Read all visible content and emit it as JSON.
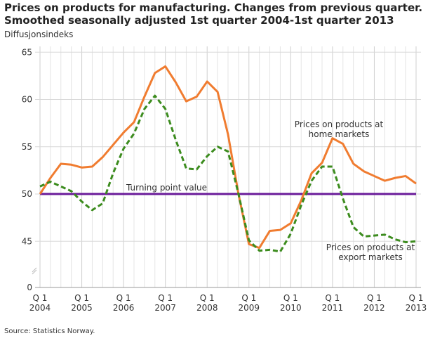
{
  "chart_data": {
    "type": "line",
    "title": "Prices on products for manufacturing. Changes from previous quarter. Smoothed seasonally adjusted 1st quarter 2004-1st quarter 2013",
    "title_lines": [
      "Prices on products for manufacturing. Changes from previous quarter.",
      "Smoothed seasonally adjusted 1st quarter 2004-1st quarter 2013"
    ],
    "ylabel": "Diffusjonsindeks",
    "source": "Source: Statistics Norway.",
    "x_tick_labels": [
      [
        "Q 1",
        "2004"
      ],
      [
        "Q 1",
        "2005"
      ],
      [
        "Q 1",
        "2006"
      ],
      [
        "Q 1",
        "2007"
      ],
      [
        "Q 1",
        "2008"
      ],
      [
        "Q 1",
        "2009"
      ],
      [
        "Q 1",
        "2010"
      ],
      [
        "Q 1",
        "2011"
      ],
      [
        "Q 1",
        "2012"
      ],
      [
        "Q 1",
        "2013"
      ]
    ],
    "x_start": "2004Q1",
    "x_end": "2013Q1",
    "y_ticks": [
      0,
      45,
      50,
      55,
      60,
      65
    ],
    "ylim": [
      0,
      65
    ],
    "y_axis_break": [
      0,
      45
    ],
    "grid": true,
    "reference_line": {
      "value": 50,
      "label": "Turning point value",
      "color": "#6a1b9a"
    },
    "series": [
      {
        "name": "Prices on products at home markets",
        "label_lines": [
          "Prices on products at",
          "home markets"
        ],
        "color": "#f07c30",
        "style": "solid",
        "values": [
          50.0,
          51.7,
          53.2,
          53.1,
          52.8,
          52.9,
          53.9,
          55.2,
          56.5,
          57.6,
          60.3,
          62.8,
          63.5,
          61.8,
          59.8,
          60.3,
          61.9,
          60.8,
          56.3,
          50.0,
          44.7,
          44.3,
          46.1,
          46.2,
          46.9,
          49.3,
          52.2,
          53.3,
          55.9,
          55.3,
          53.2,
          52.4,
          51.9,
          51.4,
          51.7,
          51.9,
          51.1
        ]
      },
      {
        "name": "Prices on products at export markets",
        "label_lines": [
          "Prices on products at",
          "export markets"
        ],
        "color": "#3c8c1e",
        "style": "dashed",
        "values": [
          50.8,
          51.3,
          50.8,
          50.3,
          49.2,
          48.3,
          49.0,
          52.2,
          54.8,
          56.4,
          59.0,
          60.4,
          59.0,
          55.7,
          52.7,
          52.6,
          54.0,
          55.0,
          54.5,
          50.0,
          45.1,
          44.0,
          44.1,
          43.9,
          45.8,
          48.8,
          51.4,
          52.9,
          52.9,
          49.5,
          46.5,
          45.5,
          45.6,
          45.7,
          45.2,
          44.9,
          45.0
        ]
      }
    ]
  }
}
